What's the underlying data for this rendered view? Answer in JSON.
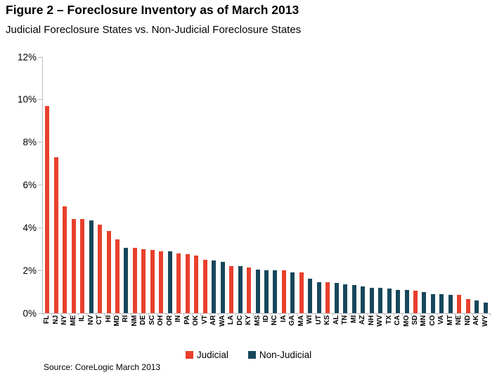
{
  "figure": {
    "title": "Figure 2 – Foreclosure Inventory as of March 2013",
    "subtitle": "Judicial Foreclosure States vs. Non-Judicial Foreclosure States",
    "source": "Source: CoreLogic March 2013"
  },
  "legend": {
    "judicial": "Judicial",
    "non_judicial": "Non-Judicial"
  },
  "colors": {
    "judicial": "#E8402C",
    "non_judicial": "#17475C",
    "axis": "#BFBFBF",
    "text": "#000000"
  },
  "chart_data": {
    "type": "bar",
    "title": "Figure 2 – Foreclosure Inventory as of March 2013",
    "subtitle": "Judicial Foreclosure States vs. Non-Judicial Foreclosure States",
    "xlabel": "",
    "ylabel": "",
    "unit": "percent",
    "ylim": [
      0,
      12
    ],
    "ytick_step": 2,
    "ytick_labels": [
      "0%",
      "2%",
      "4%",
      "6%",
      "8%",
      "10%",
      "12%"
    ],
    "grid": false,
    "legend_position": "bottom-center",
    "series": [
      {
        "name": "Judicial",
        "color": "#E8402C"
      },
      {
        "name": "Non-Judicial",
        "color": "#17475C"
      }
    ],
    "categories": [
      "FL",
      "NJ",
      "NY",
      "ME",
      "IL",
      "NV",
      "CT",
      "HI",
      "MD",
      "RI",
      "NM",
      "DE",
      "SC",
      "OH",
      "OR",
      "IN",
      "PA",
      "OK",
      "VT",
      "AR",
      "WA",
      "LA",
      "DC",
      "KY",
      "MS",
      "ID",
      "NC",
      "IA",
      "GA",
      "MA",
      "WI",
      "UT",
      "KS",
      "AL",
      "TN",
      "MI",
      "AZ",
      "NH",
      "WV",
      "TX",
      "CA",
      "MO",
      "SD",
      "MN",
      "CO",
      "VA",
      "MT",
      "NE",
      "ND",
      "AK",
      "WY"
    ],
    "values": [
      9.7,
      7.3,
      5.0,
      4.4,
      4.4,
      4.35,
      4.15,
      3.85,
      3.45,
      3.05,
      3.05,
      3.0,
      2.95,
      2.9,
      2.9,
      2.8,
      2.75,
      2.7,
      2.5,
      2.45,
      2.4,
      2.2,
      2.2,
      2.15,
      2.05,
      2.0,
      2.0,
      2.0,
      1.9,
      1.9,
      1.6,
      1.45,
      1.45,
      1.4,
      1.35,
      1.3,
      1.25,
      1.2,
      1.2,
      1.15,
      1.1,
      1.1,
      1.05,
      1.0,
      0.9,
      0.9,
      0.85,
      0.85,
      0.65,
      0.6,
      0.5
    ],
    "series_membership": [
      "Judicial",
      "Judicial",
      "Judicial",
      "Judicial",
      "Judicial",
      "Non-Judicial",
      "Judicial",
      "Judicial",
      "Judicial",
      "Non-Judicial",
      "Judicial",
      "Judicial",
      "Judicial",
      "Judicial",
      "Non-Judicial",
      "Judicial",
      "Judicial",
      "Judicial",
      "Judicial",
      "Non-Judicial",
      "Non-Judicial",
      "Judicial",
      "Non-Judicial",
      "Judicial",
      "Non-Judicial",
      "Non-Judicial",
      "Non-Judicial",
      "Judicial",
      "Non-Judicial",
      "Judicial",
      "Non-Judicial",
      "Non-Judicial",
      "Judicial",
      "Non-Judicial",
      "Non-Judicial",
      "Non-Judicial",
      "Non-Judicial",
      "Non-Judicial",
      "Non-Judicial",
      "Non-Judicial",
      "Non-Judicial",
      "Non-Judicial",
      "Judicial",
      "Non-Judicial",
      "Non-Judicial",
      "Non-Judicial",
      "Non-Judicial",
      "Judicial",
      "Judicial",
      "Non-Judicial",
      "Non-Judicial"
    ]
  }
}
